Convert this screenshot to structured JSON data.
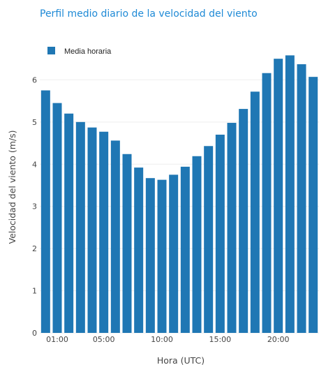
{
  "chart_data": {
    "type": "bar",
    "title": "Perfil medio diario de la velocidad del viento",
    "xlabel": "Hora (UTC)",
    "ylabel": "Velocidad del viento (m/s)",
    "x": [
      0,
      1,
      2,
      3,
      4,
      5,
      6,
      7,
      8,
      9,
      10,
      11,
      12,
      13,
      14,
      15,
      16,
      17,
      18,
      19,
      20,
      21,
      22,
      23
    ],
    "xticks": [
      {
        "value": 1,
        "label": "01:00"
      },
      {
        "value": 5,
        "label": "05:00"
      },
      {
        "value": 10,
        "label": "10:00"
      },
      {
        "value": 15,
        "label": "15:00"
      },
      {
        "value": 20,
        "label": "20:00"
      }
    ],
    "yticks": [
      0,
      1,
      2,
      3,
      4,
      5,
      6
    ],
    "ylim": [
      0,
      6.9
    ],
    "grid": true,
    "legend": "top-left",
    "series": [
      {
        "name": "Media horaria",
        "color": "#1f77b4",
        "values": [
          5.75,
          5.45,
          5.2,
          5.0,
          4.87,
          4.77,
          4.56,
          4.24,
          3.92,
          3.67,
          3.63,
          3.75,
          3.94,
          4.19,
          4.43,
          4.7,
          4.98,
          5.31,
          5.72,
          6.16,
          6.5,
          6.58,
          6.37,
          6.07
        ]
      }
    ]
  }
}
